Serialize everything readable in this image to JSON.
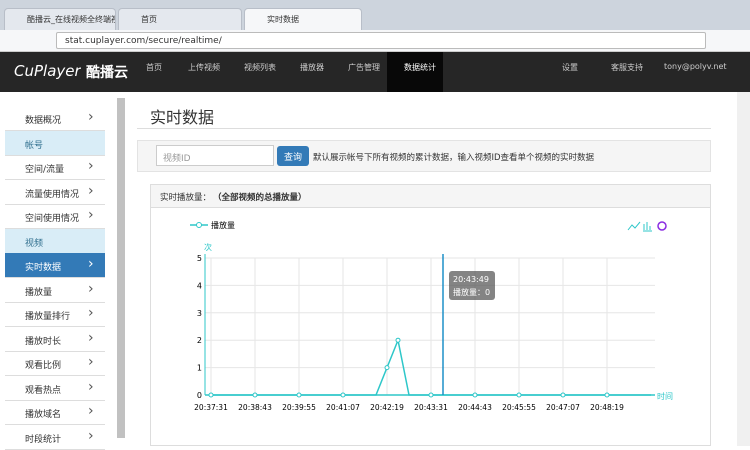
{
  "browser": {
    "tabs": [
      "酷播云_在线视频全终端视",
      "首页",
      "实时数据"
    ],
    "url": "stat.cuplayer.com/secure/realtime/"
  },
  "nav": {
    "brand": "CuPlayer",
    "brand_cn": "酷播云",
    "items": [
      "首页",
      "上传视频",
      "视频列表",
      "播放器",
      "广告管理",
      "数据统计"
    ],
    "right": [
      "设置",
      "客服支持",
      "tony@polyv.net"
    ]
  },
  "sidebar": {
    "items": [
      "数据概况",
      "帐号",
      "空间/流量",
      "流量使用情况",
      "空间使用情况",
      "视频",
      "实时数据",
      "播放量",
      "播放量排行",
      "播放时长",
      "观看比例",
      "观看热点",
      "播放域名",
      "时段统计"
    ]
  },
  "page": {
    "title": "实时数据",
    "search_placeholder": "视频ID",
    "button": "查询",
    "hint": "默认展示帐号下所有视频的累计数据，输入视频ID查看单个视频的实时数据",
    "panel_title": "实时播放量：",
    "panel_note": "（全部视频的总播放量）"
  },
  "chart_data": {
    "type": "line",
    "y_label": "次",
    "x_label": "时间",
    "categories": [
      "20:37:31",
      null,
      null,
      null,
      "20:38:43",
      null,
      null,
      null,
      "20:39:55",
      null,
      null,
      null,
      "20:41:07",
      null,
      null,
      null,
      "20:42:19",
      null,
      null,
      null,
      "20:43:31",
      null,
      null,
      null,
      "20:44:43",
      null,
      null,
      null,
      "20:45:55",
      null,
      null,
      null,
      "20:47:07",
      null,
      null,
      null,
      "20:48:19",
      null,
      null,
      null,
      null
    ],
    "series": [
      {
        "name": "播放量",
        "color": "#2ec7c9",
        "values": [
          0,
          0,
          0,
          0,
          0,
          0,
          0,
          0,
          0,
          0,
          0,
          0,
          0,
          0,
          0,
          0,
          1,
          2,
          0,
          0,
          0,
          0,
          0,
          0,
          0,
          0,
          0,
          0,
          0,
          0,
          0,
          0,
          0,
          0,
          0,
          0,
          0,
          0,
          0,
          0,
          0
        ]
      }
    ],
    "ylim": [
      0,
      5
    ],
    "yticks": [
      0,
      1,
      2,
      3,
      4,
      5
    ],
    "grid": true,
    "tooltip": {
      "time": "20:43:49",
      "label": "播放量：0"
    }
  }
}
